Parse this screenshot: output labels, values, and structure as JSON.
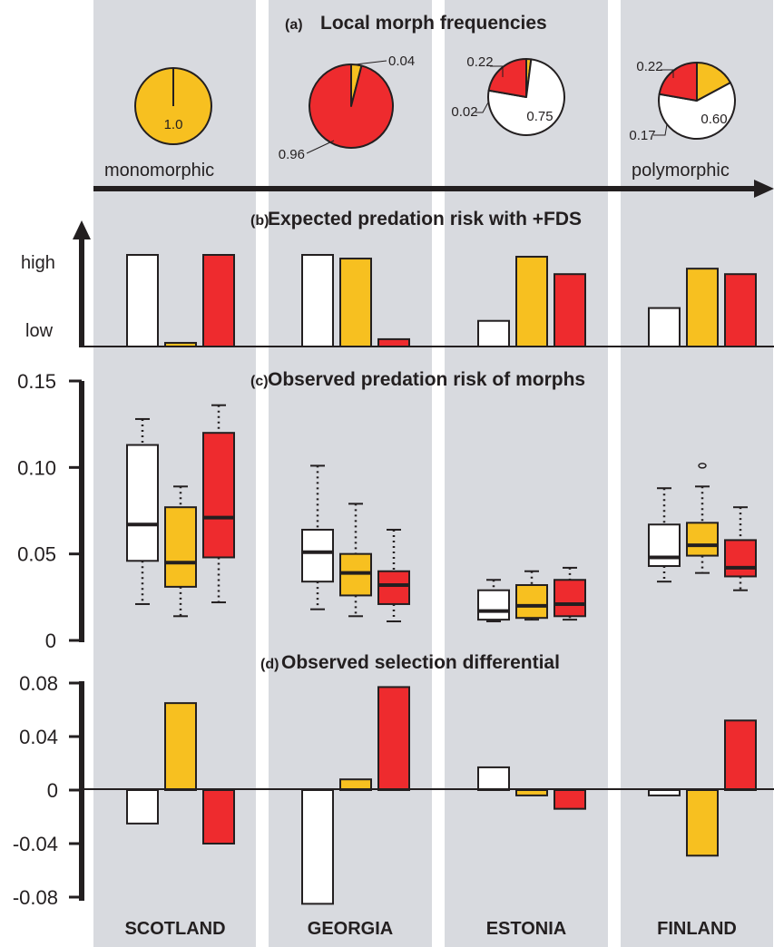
{
  "colors": {
    "white_morph": "#ffffff",
    "yellow_morph": "#f7c020",
    "red_morph": "#ee2b2e",
    "panel_bg": "#d8dadf",
    "ink": "#231f20"
  },
  "countries": [
    "SCOTLAND",
    "GEORGIA",
    "ESTONIA",
    "FINLAND"
  ],
  "morphs": [
    "white",
    "yellow",
    "red"
  ],
  "chart_data": [
    {
      "id": "a",
      "type": "pie",
      "title": "Local morph frequencies",
      "panel_letter": "(a)",
      "gradient_left_label": "monomorphic",
      "gradient_right_label": "polymorphic",
      "pies": [
        {
          "country": "SCOTLAND",
          "white": 0,
          "yellow": 1.0,
          "red": 0,
          "labels": [
            {
              "morph": "yellow",
              "text": "1.0"
            }
          ]
        },
        {
          "country": "GEORGIA",
          "white": 0,
          "yellow": 0.04,
          "red": 0.96,
          "labels": [
            {
              "morph": "yellow",
              "text": "0.04"
            },
            {
              "morph": "red",
              "text": "0.96"
            }
          ]
        },
        {
          "country": "ESTONIA",
          "white": 0.75,
          "yellow": 0.02,
          "red": 0.22,
          "labels": [
            {
              "morph": "red",
              "text": "0.22"
            },
            {
              "morph": "yellow",
              "text": "0.02"
            },
            {
              "morph": "white",
              "text": "0.75"
            }
          ]
        },
        {
          "country": "FINLAND",
          "white": 0.6,
          "yellow": 0.17,
          "red": 0.22,
          "labels": [
            {
              "morph": "red",
              "text": "0.22"
            },
            {
              "morph": "yellow",
              "text": "0.17"
            },
            {
              "morph": "white",
              "text": "0.60"
            }
          ]
        }
      ]
    },
    {
      "id": "b",
      "type": "bar",
      "title": "Expected predation risk with +FDS",
      "panel_letter": "(b)",
      "y_axis_high_label": "high",
      "y_axis_low_label": "low",
      "ylim": [
        0,
        1
      ],
      "values": {
        "SCOTLAND": [
          1.0,
          0.04,
          1.0
        ],
        "GEORGIA": [
          1.0,
          0.96,
          0.08
        ],
        "ESTONIA": [
          0.28,
          0.98,
          0.79
        ],
        "FINLAND": [
          0.42,
          0.85,
          0.79
        ]
      }
    },
    {
      "id": "c",
      "type": "box",
      "title": "Observed predation risk of morphs",
      "panel_letter": "(c)",
      "ylim": [
        0,
        0.15
      ],
      "yticks": [
        0,
        0.05,
        0.1,
        0.15
      ],
      "ytick_labels": [
        "0",
        "0.05",
        "0.10",
        "0.15"
      ],
      "boxes": {
        "SCOTLAND": [
          {
            "min": 0.021,
            "q1": 0.046,
            "median": 0.067,
            "q3": 0.113,
            "max": 0.128
          },
          {
            "min": 0.014,
            "q1": 0.031,
            "median": 0.045,
            "q3": 0.077,
            "max": 0.089
          },
          {
            "min": 0.022,
            "q1": 0.048,
            "median": 0.071,
            "q3": 0.12,
            "max": 0.136
          }
        ],
        "GEORGIA": [
          {
            "min": 0.018,
            "q1": 0.034,
            "median": 0.051,
            "q3": 0.064,
            "max": 0.101
          },
          {
            "min": 0.014,
            "q1": 0.026,
            "median": 0.039,
            "q3": 0.05,
            "max": 0.079
          },
          {
            "min": 0.011,
            "q1": 0.021,
            "median": 0.032,
            "q3": 0.04,
            "max": 0.064
          }
        ],
        "ESTONIA": [
          {
            "min": 0.011,
            "q1": 0.012,
            "median": 0.017,
            "q3": 0.029,
            "max": 0.035
          },
          {
            "min": 0.012,
            "q1": 0.013,
            "median": 0.02,
            "q3": 0.032,
            "max": 0.04
          },
          {
            "min": 0.012,
            "q1": 0.014,
            "median": 0.021,
            "q3": 0.035,
            "max": 0.042
          }
        ],
        "FINLAND": [
          {
            "min": 0.034,
            "q1": 0.043,
            "median": 0.048,
            "q3": 0.067,
            "max": 0.088
          },
          {
            "min": 0.039,
            "q1": 0.049,
            "median": 0.055,
            "q3": 0.068,
            "max": 0.089,
            "outliers": [
              0.101
            ]
          },
          {
            "min": 0.029,
            "q1": 0.037,
            "median": 0.042,
            "q3": 0.058,
            "max": 0.077
          }
        ]
      }
    },
    {
      "id": "d",
      "type": "bar",
      "title": "Observed selection differential",
      "panel_letter": "(d)",
      "ylim": [
        -0.08,
        0.08
      ],
      "yticks": [
        -0.08,
        -0.04,
        0,
        0.04,
        0.08
      ],
      "ytick_labels": [
        "-0.08",
        "-0.04",
        "0",
        "0.04",
        "0.08"
      ],
      "values": {
        "SCOTLAND": [
          -0.025,
          0.065,
          -0.04
        ],
        "GEORGIA": [
          -0.085,
          0.008,
          0.077
        ],
        "ESTONIA": [
          0.017,
          -0.004,
          -0.014
        ],
        "FINLAND": [
          -0.004,
          -0.049,
          0.052
        ]
      }
    }
  ]
}
